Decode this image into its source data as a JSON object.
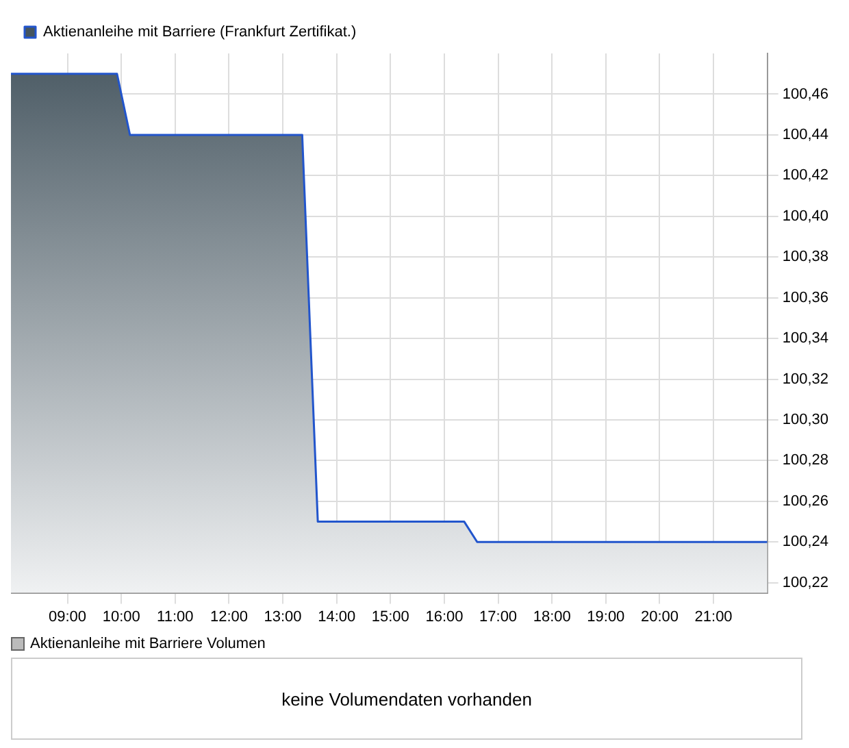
{
  "chart_data": {
    "type": "area",
    "x": [
      7.95,
      9.92,
      10.16,
      13.36,
      13.65,
      16.37,
      16.61,
      22
    ],
    "series": [
      {
        "name": "Aktienanleihe mit Barriere (Frankfurt Zertifikat.)",
        "color": "#2255cc",
        "values": [
          100.47,
          100.47,
          100.44,
          100.44,
          100.25,
          100.25,
          100.24,
          100.24
        ]
      }
    ],
    "xlim": [
      7.95,
      22
    ],
    "xticks": [
      {
        "value": 9,
        "label": "09:00"
      },
      {
        "value": 10,
        "label": "10:00"
      },
      {
        "value": 11,
        "label": "11:00"
      },
      {
        "value": 12,
        "label": "12:00"
      },
      {
        "value": 13,
        "label": "13:00"
      },
      {
        "value": 14,
        "label": "14:00"
      },
      {
        "value": 15,
        "label": "15:00"
      },
      {
        "value": 16,
        "label": "16:00"
      },
      {
        "value": 17,
        "label": "17:00"
      },
      {
        "value": 18,
        "label": "18:00"
      },
      {
        "value": 19,
        "label": "19:00"
      },
      {
        "value": 20,
        "label": "20:00"
      },
      {
        "value": 21,
        "label": "21:00"
      }
    ],
    "ylim": [
      100.215,
      100.48
    ],
    "yticks": [
      {
        "value": 100.22,
        "label": "100,22"
      },
      {
        "value": 100.24,
        "label": "100,24"
      },
      {
        "value": 100.26,
        "label": "100,26"
      },
      {
        "value": 100.28,
        "label": "100,28"
      },
      {
        "value": 100.3,
        "label": "100,30"
      },
      {
        "value": 100.32,
        "label": "100,32"
      },
      {
        "value": 100.34,
        "label": "100,34"
      },
      {
        "value": 100.36,
        "label": "100,36"
      },
      {
        "value": 100.38,
        "label": "100,38"
      },
      {
        "value": 100.4,
        "label": "100,40"
      },
      {
        "value": 100.42,
        "label": "100,42"
      },
      {
        "value": 100.44,
        "label": "100,44"
      },
      {
        "value": 100.46,
        "label": "100,46"
      }
    ],
    "grid": true,
    "legend": "top left",
    "marker": "none",
    "annotations": [
      "Aktienanleihe mit Barriere Volumen",
      "keine Volumendaten vorhanden"
    ]
  }
}
